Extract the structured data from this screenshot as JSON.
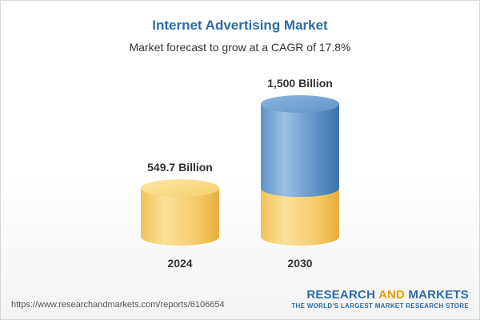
{
  "header": {
    "title": "Internet Advertising Market",
    "subtitle": "Market forecast to grow at a CAGR of 17.8%"
  },
  "chart_data": {
    "type": "bar",
    "title": "Internet Advertising Market",
    "subtitle": "Market forecast to grow at a CAGR of 17.8%",
    "categories": [
      "2024",
      "2030"
    ],
    "values": [
      549.7,
      1500
    ],
    "data_labels": [
      "549.7 Billion",
      "1,500 Billion"
    ],
    "unit": "Billion",
    "ylim": [
      0,
      1500
    ],
    "grid": false,
    "legend": "none",
    "colors": {
      "base": "#f5c75a",
      "growth": "#4f86c0"
    }
  },
  "footer": {
    "url": "https://www.researchandmarkets.com/reports/6106654",
    "brand_word1": "RESEARCH",
    "brand_word2": "AND",
    "brand_word3": "MARKETS",
    "brand_tagline": "THE WORLD'S LARGEST MARKET RESEARCH STORE"
  }
}
